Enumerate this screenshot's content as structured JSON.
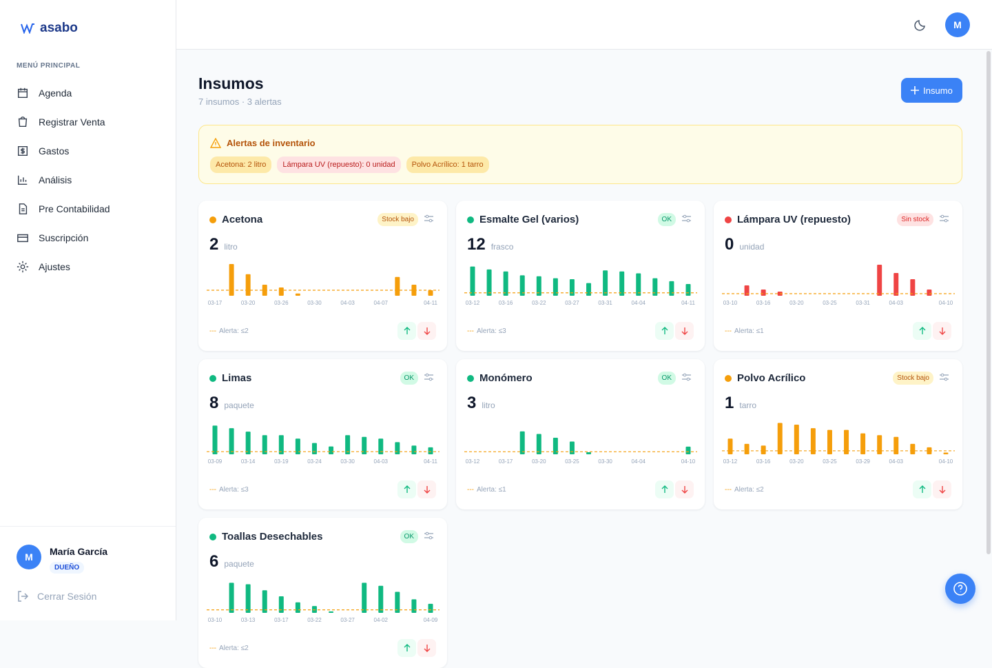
{
  "sidebar": {
    "logo": "asabo",
    "menu_title": "MENÚ PRINCIPAL",
    "menu": [
      "Agenda",
      "Registrar Venta",
      "Gastos",
      "Análisis",
      "Pre Contabilidad",
      "Suscripción",
      "Ajustes"
    ],
    "user": {
      "initial": "M",
      "name": "María García",
      "role": "DUEÑO"
    },
    "logout": "Cerrar Sesión"
  },
  "topbar": {
    "avatar": "M"
  },
  "header": {
    "title": "Insumos",
    "subtitle": "7 insumos · 3 alertas",
    "button": "Insumo"
  },
  "alerts": {
    "title": "Alertas de inventario",
    "items": [
      {
        "text": "Acetona: 2 litro",
        "level": "low"
      },
      {
        "text": "Lámpara UV (repuesto): 0 unidad",
        "level": "out"
      },
      {
        "text": "Polvo Acrílico: 1 tarro",
        "level": "low"
      }
    ]
  },
  "cards": [
    {
      "name": "Acetona",
      "status": "Stock bajo",
      "level": "low",
      "qty": 2,
      "unit": "litro",
      "alert_label": "Alerta: ≤2",
      "chart": {
        "type": "bar",
        "color": "#f59e0b",
        "alert_value": 2,
        "ylim": [
          0,
          12
        ],
        "categories": [
          "03-17",
          null,
          "03-20",
          null,
          "03-26",
          null,
          "03-30",
          null,
          "04-03",
          null,
          "04-07",
          null,
          null,
          "04-11"
        ],
        "values": [
          null,
          11.5,
          7.8,
          4,
          3,
          0.8,
          null,
          null,
          null,
          null,
          null,
          6.8,
          4,
          2
        ]
      }
    },
    {
      "name": "Esmalte Gel (varios)",
      "status": "OK",
      "level": "ok",
      "qty": 12,
      "unit": "frasco",
      "alert_label": "Alerta: ≤3",
      "chart": {
        "type": "bar",
        "color": "#10b981",
        "alert_value": 3,
        "ylim": [
          0,
          34
        ],
        "categories": [
          "03-12",
          null,
          "03-16",
          null,
          "03-22",
          null,
          "03-27",
          null,
          "03-31",
          null,
          "04-04",
          null,
          null,
          "04-11"
        ],
        "values": [
          30,
          27,
          25,
          21,
          20,
          18,
          17,
          13,
          26,
          25,
          23,
          18,
          15,
          12
        ]
      }
    },
    {
      "name": "Lámpara UV (repuesto)",
      "status": "Sin stock",
      "level": "out",
      "qty": 0,
      "unit": "unidad",
      "alert_label": "Alerta: ≤1",
      "chart": {
        "type": "bar",
        "color": "#ef4444",
        "alert_value": 1,
        "ylim": [
          0,
          16
        ],
        "categories": [
          "03-10",
          null,
          "03-16",
          null,
          "03-20",
          null,
          "03-25",
          null,
          "03-31",
          null,
          "04-03",
          null,
          null,
          "04-10"
        ],
        "values": [
          null,
          5,
          3,
          2,
          null,
          null,
          null,
          null,
          null,
          15,
          11,
          8,
          3,
          0
        ]
      }
    },
    {
      "name": "Limas",
      "status": "OK",
      "level": "ok",
      "qty": 8,
      "unit": "paquete",
      "alert_label": "Alerta: ≤3",
      "chart": {
        "type": "bar",
        "color": "#10b981",
        "alert_value": 3,
        "ylim": [
          0,
          38
        ],
        "categories": [
          "03-09",
          null,
          "03-14",
          null,
          "03-19",
          null,
          "03-24",
          null,
          "03-30",
          null,
          "04-03",
          null,
          null,
          "04-11"
        ],
        "values": [
          33,
          30,
          26,
          22,
          22,
          18,
          13,
          9,
          22,
          20,
          18,
          14,
          10,
          8
        ]
      }
    },
    {
      "name": "Monómero",
      "status": "OK",
      "level": "ok",
      "qty": 3,
      "unit": "litro",
      "alert_label": "Alerta: ≤1",
      "chart": {
        "type": "bar",
        "color": "#10b981",
        "alert_value": 1,
        "ylim": [
          0,
          13
        ],
        "categories": [
          "03-12",
          null,
          "03-17",
          null,
          "03-20",
          null,
          "03-25",
          null,
          "03-30",
          null,
          "04-04",
          null,
          null,
          "04-10"
        ],
        "values": [
          null,
          null,
          null,
          9,
          8,
          6.5,
          5,
          0.8,
          null,
          null,
          null,
          null,
          null,
          3
        ]
      }
    },
    {
      "name": "Polvo Acrílico",
      "status": "Stock bajo",
      "level": "low",
      "qty": 1,
      "unit": "tarro",
      "alert_label": "Alerta: ≤2",
      "chart": {
        "type": "bar",
        "color": "#f59e0b",
        "alert_value": 2,
        "ylim": [
          0,
          19
        ],
        "categories": [
          "03-12",
          null,
          "03-16",
          null,
          "03-20",
          null,
          "03-25",
          null,
          "03-29",
          null,
          "04-03",
          null,
          null,
          "04-10"
        ],
        "values": [
          9,
          6,
          5,
          18,
          17,
          15,
          14,
          14,
          12,
          11,
          10,
          6,
          4,
          1
        ]
      }
    },
    {
      "name": "Toallas Desechables",
      "status": "OK",
      "level": "ok",
      "qty": 6,
      "unit": "paquete",
      "alert_label": "Alerta: ≤2",
      "chart": {
        "type": "bar",
        "color": "#10b981",
        "alert_value": 2,
        "ylim": [
          0,
          22
        ],
        "categories": [
          "03-10",
          null,
          "03-13",
          null,
          "03-17",
          null,
          "03-22",
          null,
          "03-27",
          null,
          "04-02",
          null,
          null,
          "04-09"
        ],
        "values": [
          null,
          20,
          19,
          15,
          11,
          7,
          4.5,
          1,
          null,
          20,
          18,
          14,
          9,
          6
        ]
      }
    }
  ]
}
